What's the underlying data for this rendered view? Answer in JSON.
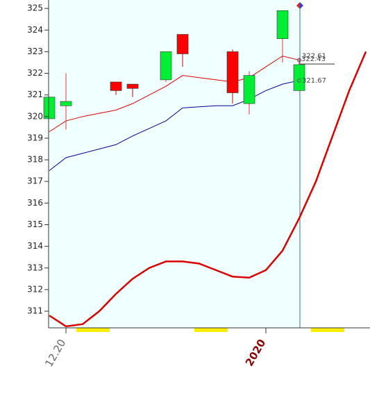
{
  "chart_data": {
    "type": "candlestick",
    "categories": [
      null,
      "12.20",
      null,
      null,
      null,
      null,
      null,
      null,
      null,
      null,
      null,
      null,
      null,
      "2020",
      null,
      null,
      null,
      null,
      null,
      null
    ],
    "ylim": [
      310.23,
      325.39
    ],
    "yticks": [
      311,
      312,
      313,
      314,
      315,
      316,
      317,
      318,
      319,
      320,
      321,
      322,
      323,
      324,
      325
    ],
    "up_color": "#00ee33",
    "down_color": "#ff0000",
    "open": [
      319.9,
      320.5,
      null,
      null,
      321.6,
      321.5,
      null,
      321.7,
      323.8,
      null,
      null,
      323.0,
      320.6,
      null,
      323.6,
      321.2,
      null,
      null,
      null,
      null
    ],
    "high": [
      320.9,
      322.0,
      null,
      null,
      321.6,
      321.5,
      null,
      323.0,
      323.8,
      null,
      null,
      323.1,
      322.1,
      null,
      324.9,
      322.7,
      null,
      null,
      null,
      null
    ],
    "low": [
      319.9,
      319.4,
      null,
      null,
      321.0,
      320.9,
      null,
      321.6,
      322.3,
      null,
      null,
      320.6,
      320.1,
      null,
      322.5,
      321.2,
      null,
      null,
      null,
      null
    ],
    "close": [
      320.9,
      320.7,
      null,
      null,
      321.2,
      321.3,
      null,
      323.0,
      322.9,
      null,
      null,
      321.1,
      321.9,
      null,
      324.9,
      322.4,
      null,
      null,
      null,
      null
    ],
    "series": [
      {
        "color": "#dd0000",
        "width": 1,
        "values": [
          319.3,
          319.8,
          320.0,
          320.15,
          320.3,
          320.6,
          321.0,
          321.4,
          321.9,
          321.8,
          321.7,
          321.6,
          321.8,
          322.3,
          322.8,
          322.61,
          null,
          null,
          null,
          null
        ]
      },
      {
        "color": "#000099",
        "width": 1,
        "values": [
          317.5,
          318.1,
          318.3,
          318.5,
          318.7,
          319.1,
          319.45,
          319.8,
          320.4,
          320.45,
          320.5,
          320.5,
          320.8,
          321.2,
          321.5,
          321.67,
          null,
          null,
          null,
          null
        ]
      },
      {
        "color": "#dd0000",
        "width": 2.5,
        "values": [
          310.8,
          310.3,
          310.4,
          311.0,
          311.8,
          312.5,
          313.0,
          313.3,
          313.3,
          313.2,
          312.9,
          312.6,
          312.55,
          312.9,
          313.8,
          315.3,
          317.0,
          319.1,
          321.2,
          323.0
        ]
      }
    ],
    "crosshair": 322.43
  }
}
